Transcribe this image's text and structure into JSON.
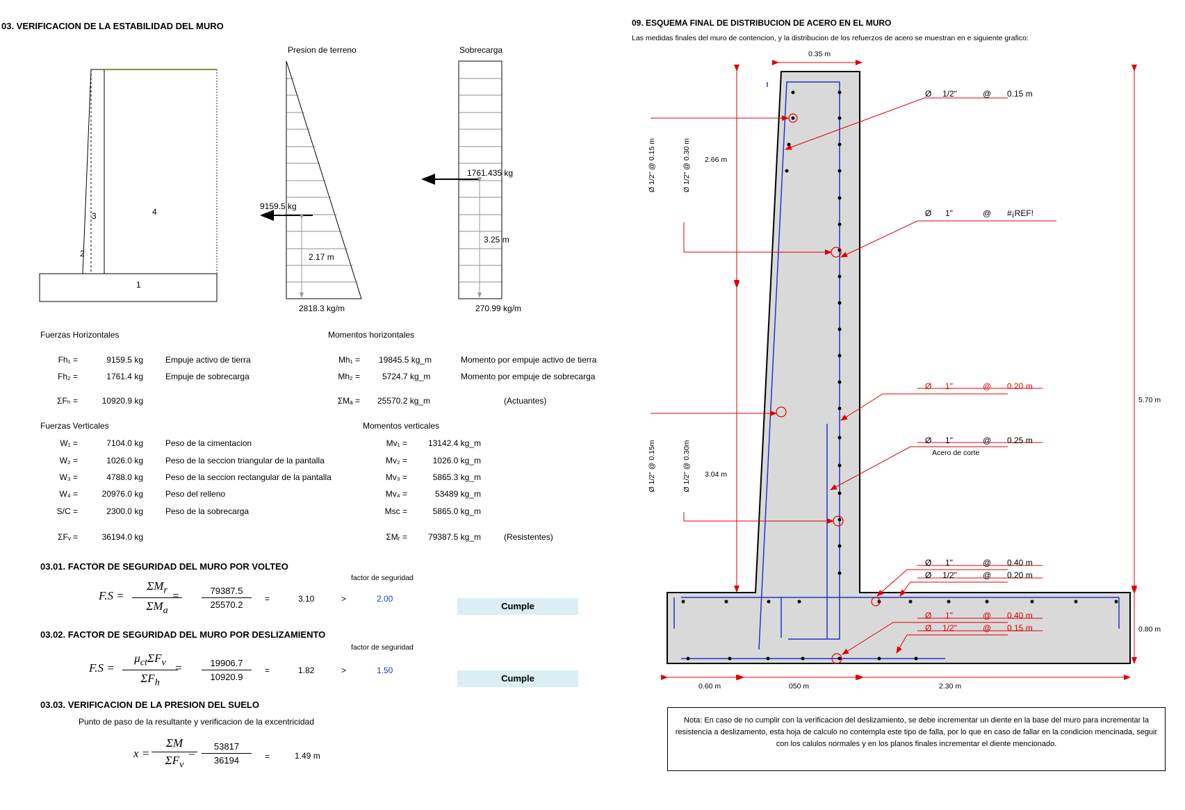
{
  "section3": {
    "title": "03. VERIFICACION DE LA ESTABILIDAD DEL MURO",
    "wall_labels": [
      "1",
      "2",
      "3",
      "4"
    ],
    "pressure_title": "Presion de terreno",
    "surcharge_title": "Sobrecarga",
    "pressure_force": "9159.5 kg",
    "pressure_arm": "2.17 m",
    "pressure_base": "2818.3 kg/m",
    "surcharge_force": "1761.435 kg",
    "surcharge_arm": "3.25 m",
    "surcharge_base": "270.99 kg/m"
  },
  "horizontal": {
    "title": "Fuerzas Horizontales",
    "moments_title": "Momentos horizontales",
    "rows": [
      {
        "sym": "Fh₁ =",
        "val": "9159.5 kg",
        "desc": "Empuje activo de tierra",
        "msym": "Mh₁ =",
        "mval": "19845.5 kg_m",
        "mdesc": "Momento por empuje activo de tierra"
      },
      {
        "sym": "Fh₂ =",
        "val": "1761.4 kg",
        "desc": "Empuje de sobrecarga",
        "msym": "Mh₂ =",
        "mval": "5724.7 kg_m",
        "mdesc": "Momento por empuje de sobrecarga"
      }
    ],
    "sum_sym": "ΣFₕ =",
    "sum_val": "10920.9 kg",
    "msum_sym": "ΣMₐ =",
    "msum_val": "25570.2 kg_m",
    "msum_note": "(Actuantes)"
  },
  "vertical": {
    "title": "Fuerzas Verticales",
    "moments_title": "Momentos verticales",
    "rows": [
      {
        "sym": "W₁ =",
        "val": "7104.0 kg",
        "desc": "Peso de la cimentacion",
        "msym": "Mv₁ =",
        "mval": "13142.4 kg_m"
      },
      {
        "sym": "W₂ =",
        "val": "1026.0 kg",
        "desc": "Peso de la seccion triangular de la pantalla",
        "msym": "Mv₂ =",
        "mval": "1026.0 kg_m"
      },
      {
        "sym": "W₃ =",
        "val": "4788.0 kg",
        "desc": "Peso de la seccion rectangular de la pantalla",
        "msym": "Mv₃ =",
        "mval": "5865.3 kg_m"
      },
      {
        "sym": "W₄ =",
        "val": "20976.0 kg",
        "desc": "Peso del relleno",
        "msym": "Mv₄ =",
        "mval": "53489 kg_m"
      },
      {
        "sym": "S/C =",
        "val": "2300.0 kg",
        "desc": "Peso de la sobrecarga",
        "msym": "Msc =",
        "mval": "5865.0 kg_m"
      }
    ],
    "sum_sym": "ΣFᵥ =",
    "sum_val": "36194.0 kg",
    "msum_sym": "ΣMᵣ =",
    "msum_val": "79387.5 kg_m",
    "msum_note": "(Resistentes)"
  },
  "fs_volteo": {
    "title": "03.01. FACTOR DE SEGURIDAD DEL MURO POR VOLTEO",
    "factor_label": "factor de seguridad",
    "lhs": "F.S =",
    "num": "79387.5",
    "den": "25570.2",
    "eq": "=",
    "result": "3.10",
    "cmp": ">",
    "factor": "2.00",
    "status": "Cumple"
  },
  "fs_desl": {
    "title": "03.02. FACTOR DE SEGURIDAD DEL MURO POR DESLIZAMIENTO",
    "factor_label": "factor de seguridad",
    "lhs": "F.S =",
    "num": "19906.7",
    "den": "10920.9",
    "eq": "=",
    "result": "1.82",
    "cmp": ">",
    "factor": "1.50",
    "status": "Cumple"
  },
  "presion": {
    "title": "03.03. VERIFICACION DE LA PRESION DEL SUELO",
    "subtitle": "Punto de paso de la resultante y verificacion de la excentricidad",
    "lhs": "x =",
    "num": "53817",
    "den": "36194",
    "eq": "=",
    "result": "1.49 m"
  },
  "section9": {
    "title": "09. ESQUEMA FINAL DE DISTRIBUCION DE ACERO EN EL MURO",
    "subtitle": "Las medidas finales del muro de contencion, y la distribucion de los refuerzos de acero se muestran en  e siguiente grafico:",
    "top_width": "0.35 m",
    "h_upper": "2.66 m",
    "h_lower": "3.04 m",
    "h_total": "5.70 m",
    "h_base": "0.80 m",
    "b_left": "0.60 m",
    "b_mid": "050 m",
    "b_right": "2.30 m",
    "bars": [
      {
        "phi": "Ø",
        "dia": "1/2\"",
        "at": "@",
        "sp": "0.15 m"
      },
      {
        "phi": "Ø",
        "dia": "1\"",
        "at": "@",
        "sp": "#¡REF!"
      },
      {
        "phi": "Ø",
        "dia": "1\"",
        "at": "@",
        "sp": "0.20 m"
      },
      {
        "phi": "Ø",
        "dia": "1\"",
        "at": "@",
        "sp": "0.25 m"
      },
      {
        "phi": "Ø",
        "dia": "1\"",
        "at": "@",
        "sp": "0.40 m"
      },
      {
        "phi": "Ø",
        "dia": "1/2\"",
        "at": "@",
        "sp": "0.20 m"
      },
      {
        "phi": "Ø",
        "dia": "1\"",
        "at": "@",
        "sp": "0.40 m"
      },
      {
        "phi": "Ø",
        "dia": "1/2\"",
        "at": "@",
        "sp": "0.15 m"
      }
    ],
    "acero_corte": "Acero de corte",
    "vert_upper": [
      "Ø 1/2\" @ 0.15 m",
      "Ø 1/2\" @ 0.30 m"
    ],
    "vert_lower": [
      "Ø 1/2\" @ 0.15m",
      "Ø 1/2\" @ 0.30m"
    ],
    "note": "Nota: En caso de no cumplir con la verificacion del deslizamiento, se debe incrementar un diente en la base del muro para incrementar la resistencia a deslizamento, esta hoja de calculo no contempla este tipo de falla, por lo que en caso de fallar en la condicion mencinada, seguir con los calulos normales y en los planos finales incrementar el diente mencionado."
  }
}
